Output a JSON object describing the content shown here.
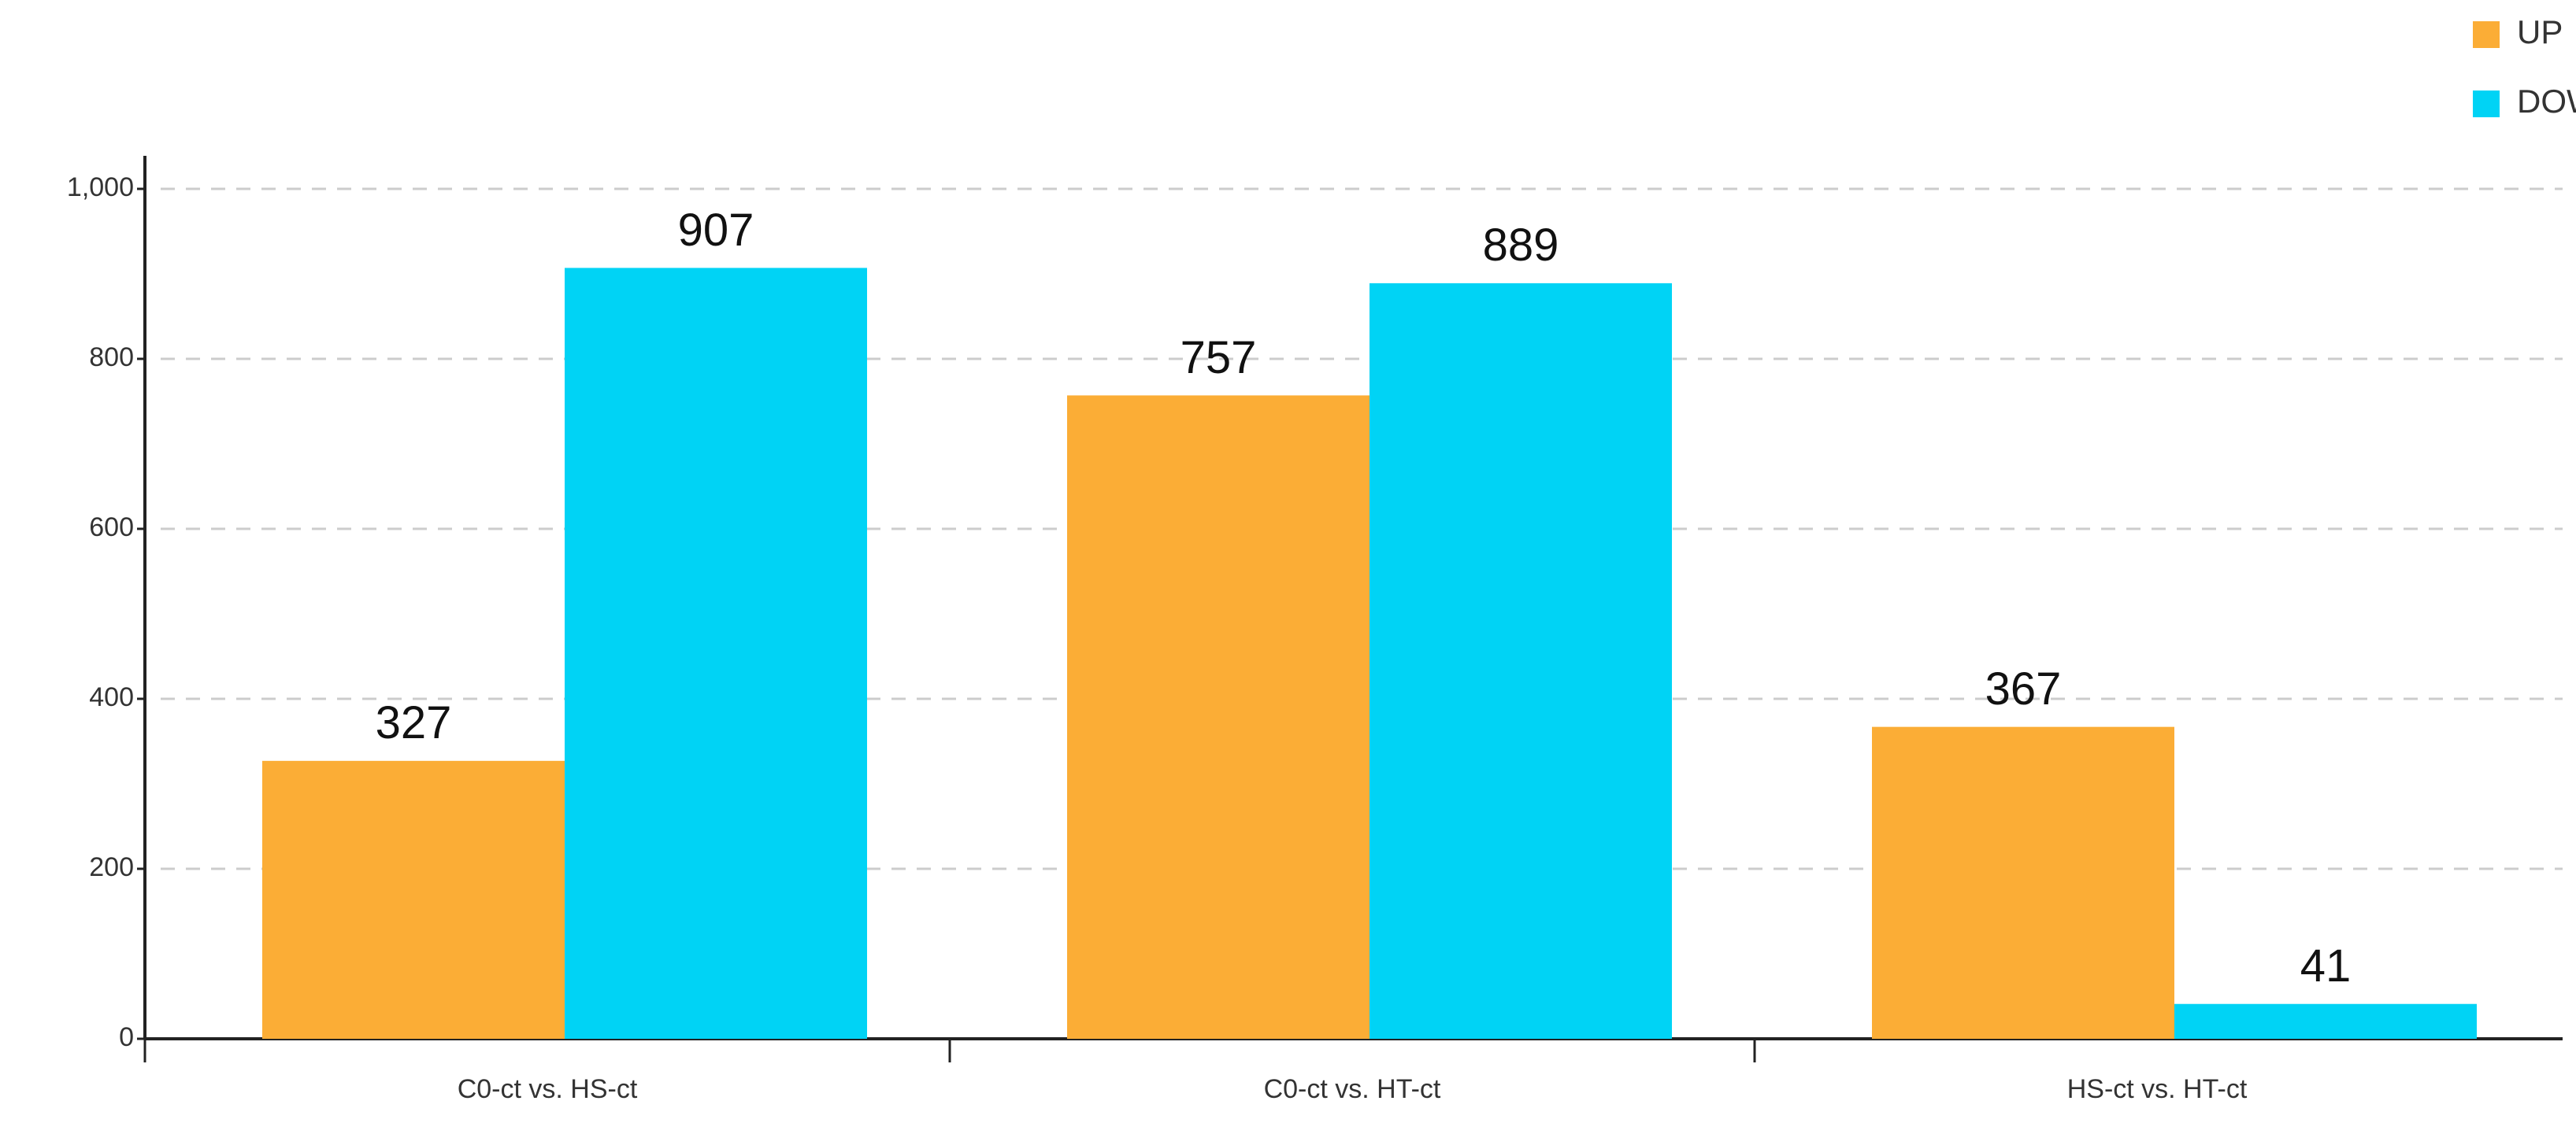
{
  "chart_data": {
    "type": "bar",
    "categories": [
      "C0-ct vs. HS-ct",
      "C0-ct vs. HT-ct",
      "HS-ct vs. HT-ct"
    ],
    "series": [
      {
        "name": "UP",
        "color": "#fbad36",
        "values": [
          327,
          757,
          367
        ]
      },
      {
        "name": "DOWN",
        "color": "#00d3f5",
        "values": [
          907,
          889,
          41
        ]
      }
    ],
    "ylim": [
      0,
      1000
    ],
    "yticks": [
      0,
      200,
      400,
      600,
      800,
      {
        "value": 1000,
        "label": "1,000"
      }
    ],
    "grid": true,
    "legend": "top-right"
  }
}
